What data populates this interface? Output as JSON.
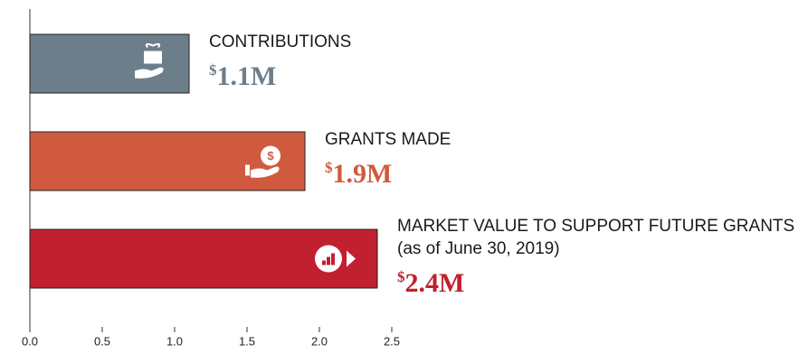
{
  "chart_data": {
    "type": "barh",
    "categories": [
      "CONTRIBUTIONS",
      "GRANTS MADE",
      "MARKET VALUE TO SUPPORT FUTURE GRANTS (as of June 30, 2019)"
    ],
    "values": [
      1.1,
      1.9,
      2.4
    ],
    "value_labels": [
      "$1.1M",
      "$1.9M",
      "$2.4M"
    ],
    "colors": [
      "#6d7e8b",
      "#d05a3f",
      "#c1202f"
    ],
    "xlim": [
      0,
      2.5
    ],
    "xticks": [
      {
        "value": 0,
        "label": "0.0"
      },
      0.5,
      {
        "value": 1,
        "label": "1.0"
      },
      1.5,
      {
        "value": 2,
        "label": "2.0"
      },
      2.5
    ]
  }
}
